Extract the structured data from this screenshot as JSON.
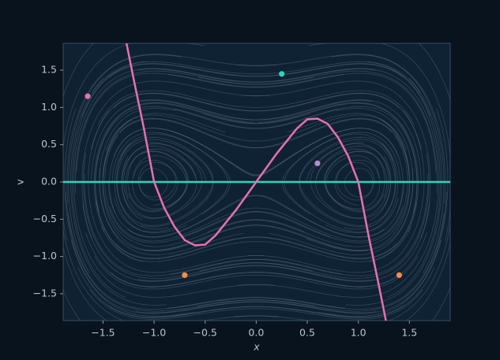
{
  "chart_data": {
    "type": "phase_portrait",
    "xlabel": "x",
    "ylabel": "v",
    "xlim": [
      -1.89,
      1.9
    ],
    "ylim": [
      -1.86,
      1.86
    ],
    "xticks": [
      {
        "value": -1.5,
        "label": "−1.5"
      },
      {
        "value": -1,
        "label": "−1.0"
      },
      {
        "value": -0.5,
        "label": "−0.5"
      },
      {
        "value": 0,
        "label": "0.0"
      },
      {
        "value": 0.5,
        "label": "0.5"
      },
      {
        "value": 1,
        "label": "1.0"
      },
      {
        "value": 1.5,
        "label": "1.5"
      }
    ],
    "yticks": [
      {
        "value": -1.5,
        "label": "−1.5"
      },
      {
        "value": -1,
        "label": "−1.0"
      },
      {
        "value": -0.5,
        "label": "−0.5"
      },
      {
        "value": 0,
        "label": "0.0"
      },
      {
        "value": 0.5,
        "label": "0.5"
      },
      {
        "value": 1,
        "label": "1.0"
      },
      {
        "value": 1.5,
        "label": "1.5"
      }
    ],
    "curve": {
      "color": "#e86fb4",
      "x": [
        -1.27,
        -1.2,
        -1.1,
        -1.0,
        -0.9,
        -0.8,
        -0.7,
        -0.6,
        -0.5,
        -0.4,
        -0.3,
        -0.2,
        -0.1,
        0,
        0.1,
        0.2,
        0.3,
        0.4,
        0.5,
        0.6,
        0.7,
        0.8,
        0.9,
        1.0,
        1.1,
        1.2,
        1.27
      ],
      "values": [
        1.86,
        1.38,
        0.72,
        0,
        -0.35,
        -0.6,
        -0.78,
        -0.85,
        -0.84,
        -0.72,
        -0.55,
        -0.38,
        -0.19,
        0,
        0.19,
        0.38,
        0.55,
        0.72,
        0.84,
        0.85,
        0.78,
        0.6,
        0.35,
        0,
        -0.72,
        -1.38,
        -1.86
      ]
    },
    "hline": {
      "value": 0,
      "color": "#2fd3c1"
    },
    "points": {
      "x": [
        -1.65,
        0.25,
        0.6,
        -0.7,
        1.4
      ],
      "values": [
        1.15,
        1.45,
        0.25,
        -1.25,
        -1.25
      ],
      "colors": [
        "#e86fb4",
        "#2fd3c1",
        "#b98ad6",
        "#f58c4a",
        "#f58c4a"
      ]
    }
  }
}
